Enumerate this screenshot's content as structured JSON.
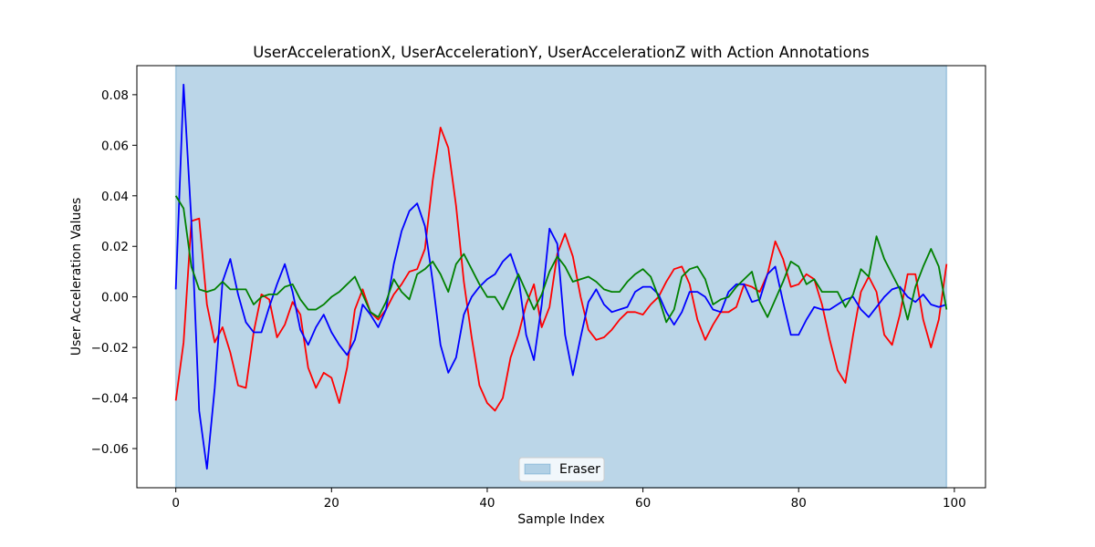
{
  "chart_data": {
    "type": "line",
    "title": "UserAccelerationX, UserAccelerationY, UserAccelerationZ with Action Annotations",
    "xlabel": "Sample Index",
    "ylabel": "User Acceleration Values",
    "xlim": [
      -5.0,
      104.0
    ],
    "ylim": [
      -0.0755,
      0.0915
    ],
    "xticks": [
      0,
      20,
      40,
      60,
      80,
      100
    ],
    "yticks": [
      -0.06,
      -0.04,
      -0.02,
      0.0,
      0.02,
      0.04,
      0.06,
      0.08
    ],
    "xtick_labels": [
      "0",
      "20",
      "40",
      "60",
      "80",
      "100"
    ],
    "ytick_labels": [
      "−0.06",
      "−0.04",
      "−0.02",
      "0.00",
      "0.02",
      "0.04",
      "0.06",
      "0.08"
    ],
    "grid": false,
    "legend_position": "bottom-center",
    "annotations": [
      {
        "label": "Eraser",
        "x_start": 0,
        "x_end": 99,
        "color": "#1f77b4",
        "alpha": 0.3
      }
    ],
    "series": [
      {
        "color": "#ff0000",
        "values": [
          -0.041,
          -0.018,
          0.03,
          0.031,
          -0.003,
          -0.018,
          -0.012,
          -0.022,
          -0.035,
          -0.036,
          -0.014,
          0.001,
          -0.001,
          -0.016,
          -0.011,
          -0.002,
          -0.007,
          -0.028,
          -0.036,
          -0.03,
          -0.032,
          -0.042,
          -0.028,
          -0.005,
          0.003,
          -0.006,
          -0.009,
          -0.005,
          0.001,
          0.005,
          0.01,
          0.011,
          0.019,
          0.046,
          0.067,
          0.059,
          0.036,
          0.006,
          -0.016,
          -0.035,
          -0.042,
          -0.045,
          -0.04,
          -0.024,
          -0.015,
          -0.003,
          0.005,
          -0.012,
          -0.004,
          0.017,
          0.025,
          0.016,
          0.0,
          -0.013,
          -0.017,
          -0.016,
          -0.013,
          -0.009,
          -0.006,
          -0.006,
          -0.007,
          -0.003,
          0.0,
          0.006,
          0.011,
          0.012,
          0.005,
          -0.009,
          -0.017,
          -0.011,
          -0.006,
          -0.006,
          -0.004,
          0.005,
          0.004,
          0.002,
          0.009,
          0.022,
          0.015,
          0.004,
          0.005,
          0.009,
          0.007,
          -0.003,
          -0.017,
          -0.029,
          -0.034,
          -0.015,
          0.002,
          0.008,
          0.002,
          -0.015,
          -0.019,
          -0.007,
          0.009,
          0.009,
          -0.009,
          -0.02,
          -0.009,
          0.013
        ]
      },
      {
        "color": "#0000ff",
        "values": [
          0.003,
          0.084,
          0.03,
          -0.045,
          -0.068,
          -0.036,
          0.006,
          0.015,
          0.001,
          -0.01,
          -0.014,
          -0.014,
          -0.004,
          0.005,
          0.013,
          0.002,
          -0.013,
          -0.019,
          -0.012,
          -0.007,
          -0.014,
          -0.019,
          -0.023,
          -0.017,
          -0.003,
          -0.007,
          -0.012,
          -0.005,
          0.013,
          0.026,
          0.034,
          0.037,
          0.028,
          0.006,
          -0.019,
          -0.03,
          -0.024,
          -0.007,
          0.0,
          0.004,
          0.007,
          0.009,
          0.014,
          0.017,
          0.008,
          -0.015,
          -0.025,
          -0.003,
          0.027,
          0.021,
          -0.015,
          -0.031,
          -0.016,
          -0.002,
          0.003,
          -0.003,
          -0.006,
          -0.005,
          -0.004,
          0.002,
          0.004,
          0.004,
          0.001,
          -0.006,
          -0.011,
          -0.006,
          0.002,
          0.002,
          0.0,
          -0.005,
          -0.006,
          0.002,
          0.005,
          0.005,
          -0.002,
          -0.001,
          0.009,
          0.012,
          -0.002,
          -0.015,
          -0.015,
          -0.009,
          -0.004,
          -0.005,
          -0.005,
          -0.003,
          -0.001,
          0.0,
          -0.005,
          -0.008,
          -0.004,
          0.0,
          0.003,
          0.004,
          0.0,
          -0.002,
          0.001,
          -0.003,
          -0.004,
          -0.003
        ]
      },
      {
        "color": "#008000",
        "values": [
          0.04,
          0.035,
          0.012,
          0.003,
          0.002,
          0.003,
          0.006,
          0.003,
          0.003,
          0.003,
          -0.003,
          0.0,
          0.001,
          0.001,
          0.004,
          0.005,
          -0.001,
          -0.005,
          -0.005,
          -0.003,
          0.0,
          0.002,
          0.005,
          0.008,
          0.001,
          -0.006,
          -0.008,
          -0.002,
          0.007,
          0.002,
          -0.001,
          0.009,
          0.011,
          0.014,
          0.009,
          0.002,
          0.013,
          0.017,
          0.011,
          0.005,
          0.0,
          0.0,
          -0.005,
          0.002,
          0.009,
          0.002,
          -0.005,
          0.001,
          0.01,
          0.016,
          0.012,
          0.006,
          0.007,
          0.008,
          0.006,
          0.003,
          0.002,
          0.002,
          0.006,
          0.009,
          0.011,
          0.008,
          0.0,
          -0.01,
          -0.005,
          0.008,
          0.011,
          0.012,
          0.007,
          -0.003,
          -0.001,
          0.0,
          0.004,
          0.007,
          0.01,
          -0.002,
          -0.008,
          -0.001,
          0.006,
          0.014,
          0.012,
          0.005,
          0.007,
          0.002,
          0.002,
          0.002,
          -0.004,
          0.001,
          0.011,
          0.008,
          0.024,
          0.015,
          0.009,
          0.003,
          -0.009,
          0.004,
          0.012,
          0.019,
          0.012,
          -0.005
        ]
      }
    ]
  }
}
